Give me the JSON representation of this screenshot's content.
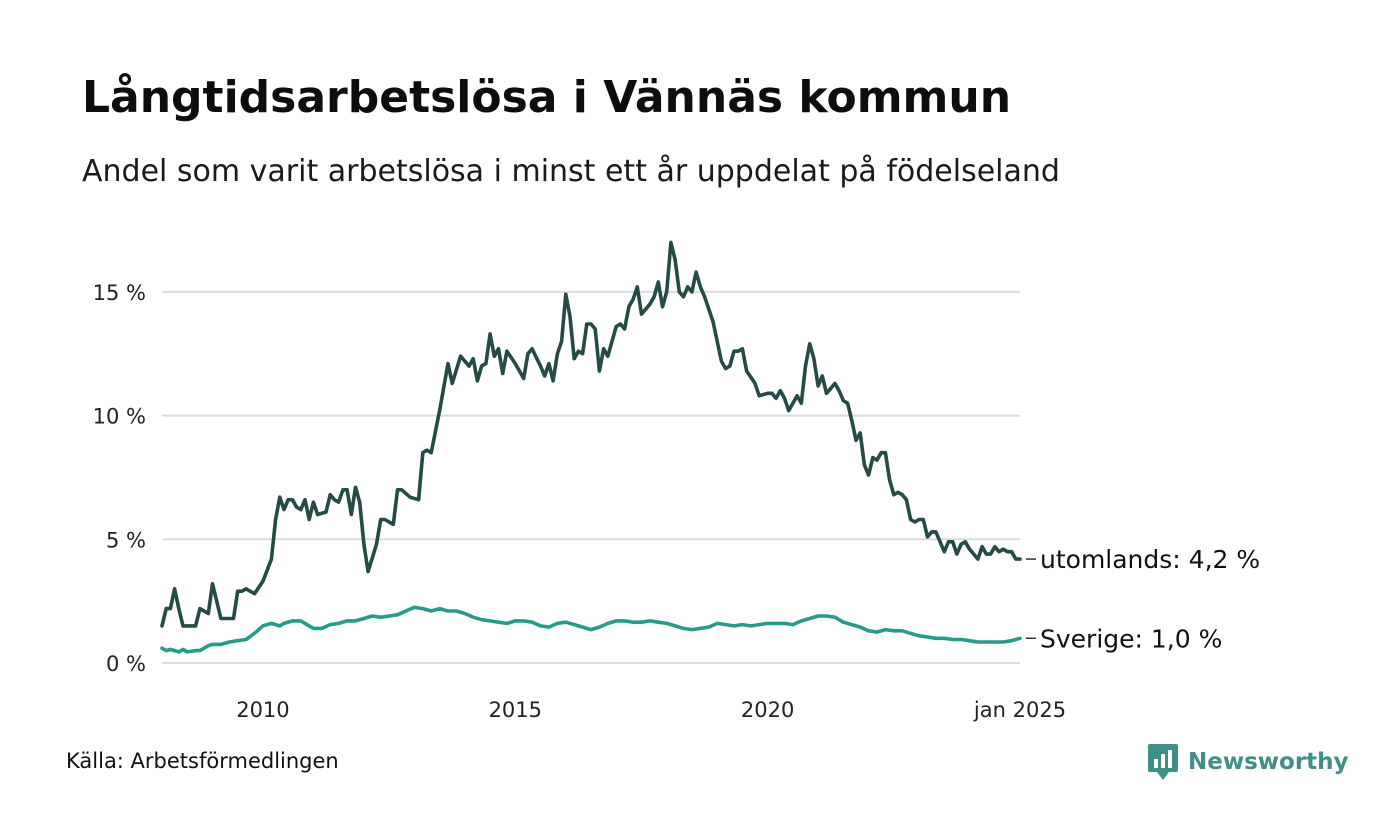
{
  "header": {
    "title": "Långtidsarbetslösa i Vännäs kommun",
    "subtitle": "Andel som varit arbetslösa i minst ett år uppdelat på födelseland"
  },
  "footer": {
    "source": "Källa: Arbetsförmedlingen",
    "brand": "Newsworthy"
  },
  "colors": {
    "utomlands": "#244b45",
    "sverige": "#2a9a88",
    "grid": "#dcdcdc",
    "brand": "#3f8f87"
  },
  "chart_data": {
    "type": "line",
    "title": "Långtidsarbetslösa i Vännäs kommun",
    "subtitle": "Andel som varit arbetslösa i minst ett år uppdelat på födelseland",
    "xlabel": "",
    "ylabel": "",
    "ylim": [
      0,
      17.5
    ],
    "xlim": [
      "2008-01",
      "2025-01"
    ],
    "grid": true,
    "y_ticks": [
      {
        "value": 0,
        "label": "0 %"
      },
      {
        "value": 5,
        "label": "5 %"
      },
      {
        "value": 10,
        "label": "10 %"
      },
      {
        "value": 15,
        "label": "15 %"
      }
    ],
    "x_ticks": [
      {
        "value": "2010-01",
        "label": "2010"
      },
      {
        "value": "2015-01",
        "label": "2015"
      },
      {
        "value": "2020-01",
        "label": "2020"
      },
      {
        "value": "2025-01",
        "label": "jan 2025"
      }
    ],
    "series": [
      {
        "key": "utomlands",
        "end_label": "utomlands: 4,2 %",
        "points": [
          [
            "2008-01",
            1.5
          ],
          [
            "2008-02",
            2.2
          ],
          [
            "2008-03",
            2.2
          ],
          [
            "2008-04",
            3.0
          ],
          [
            "2008-05",
            2.2
          ],
          [
            "2008-06",
            1.5
          ],
          [
            "2008-09",
            1.5
          ],
          [
            "2008-10",
            2.2
          ],
          [
            "2008-12",
            2.0
          ],
          [
            "2009-01",
            3.2
          ],
          [
            "2009-03",
            1.8
          ],
          [
            "2009-06",
            1.8
          ],
          [
            "2009-07",
            2.9
          ],
          [
            "2009-08",
            2.9
          ],
          [
            "2009-09",
            3.0
          ],
          [
            "2009-11",
            2.8
          ],
          [
            "2010-01",
            3.3
          ],
          [
            "2010-03",
            4.2
          ],
          [
            "2010-04",
            5.8
          ],
          [
            "2010-05",
            6.7
          ],
          [
            "2010-06",
            6.2
          ],
          [
            "2010-07",
            6.6
          ],
          [
            "2010-08",
            6.6
          ],
          [
            "2010-09",
            6.3
          ],
          [
            "2010-10",
            6.2
          ],
          [
            "2010-11",
            6.6
          ],
          [
            "2010-12",
            5.8
          ],
          [
            "2011-01",
            6.5
          ],
          [
            "2011-02",
            6.0
          ],
          [
            "2011-04",
            6.1
          ],
          [
            "2011-05",
            6.8
          ],
          [
            "2011-06",
            6.6
          ],
          [
            "2011-07",
            6.5
          ],
          [
            "2011-08",
            7.0
          ],
          [
            "2011-09",
            7.0
          ],
          [
            "2011-10",
            6.0
          ],
          [
            "2011-11",
            7.1
          ],
          [
            "2011-12",
            6.5
          ],
          [
            "2012-01",
            4.8
          ],
          [
            "2012-02",
            3.7
          ],
          [
            "2012-04",
            4.8
          ],
          [
            "2012-05",
            5.8
          ],
          [
            "2012-06",
            5.8
          ],
          [
            "2012-08",
            5.6
          ],
          [
            "2012-09",
            7.0
          ],
          [
            "2012-10",
            7.0
          ],
          [
            "2012-12",
            6.7
          ],
          [
            "2013-02",
            6.6
          ],
          [
            "2013-03",
            8.5
          ],
          [
            "2013-04",
            8.6
          ],
          [
            "2013-05",
            8.5
          ],
          [
            "2013-07",
            10.2
          ],
          [
            "2013-09",
            12.1
          ],
          [
            "2013-10",
            11.3
          ],
          [
            "2013-12",
            12.4
          ],
          [
            "2014-02",
            12.0
          ],
          [
            "2014-03",
            12.3
          ],
          [
            "2014-04",
            11.4
          ],
          [
            "2014-05",
            12.0
          ],
          [
            "2014-06",
            12.1
          ],
          [
            "2014-07",
            13.3
          ],
          [
            "2014-08",
            12.4
          ],
          [
            "2014-09",
            12.7
          ],
          [
            "2014-10",
            11.7
          ],
          [
            "2014-11",
            12.6
          ],
          [
            "2015-01",
            12.1
          ],
          [
            "2015-03",
            11.5
          ],
          [
            "2015-04",
            12.5
          ],
          [
            "2015-05",
            12.7
          ],
          [
            "2015-07",
            12.0
          ],
          [
            "2015-08",
            11.6
          ],
          [
            "2015-09",
            12.1
          ],
          [
            "2015-10",
            11.4
          ],
          [
            "2015-11",
            12.5
          ],
          [
            "2015-12",
            13.0
          ],
          [
            "2016-01",
            14.9
          ],
          [
            "2016-02",
            14.0
          ],
          [
            "2016-03",
            12.3
          ],
          [
            "2016-04",
            12.6
          ],
          [
            "2016-05",
            12.5
          ],
          [
            "2016-06",
            13.7
          ],
          [
            "2016-07",
            13.7
          ],
          [
            "2016-08",
            13.5
          ],
          [
            "2016-09",
            11.8
          ],
          [
            "2016-10",
            12.7
          ],
          [
            "2016-11",
            12.4
          ],
          [
            "2017-01",
            13.6
          ],
          [
            "2017-02",
            13.7
          ],
          [
            "2017-03",
            13.5
          ],
          [
            "2017-04",
            14.4
          ],
          [
            "2017-05",
            14.7
          ],
          [
            "2017-06",
            15.2
          ],
          [
            "2017-07",
            14.1
          ],
          [
            "2017-08",
            14.3
          ],
          [
            "2017-09",
            14.5
          ],
          [
            "2017-10",
            14.8
          ],
          [
            "2017-11",
            15.4
          ],
          [
            "2017-12",
            14.4
          ],
          [
            "2018-01",
            15.0
          ],
          [
            "2018-02",
            17.0
          ],
          [
            "2018-03",
            16.3
          ],
          [
            "2018-04",
            15.0
          ],
          [
            "2018-05",
            14.8
          ],
          [
            "2018-06",
            15.2
          ],
          [
            "2018-07",
            15.0
          ],
          [
            "2018-08",
            15.8
          ],
          [
            "2018-09",
            15.2
          ],
          [
            "2018-10",
            14.8
          ],
          [
            "2018-12",
            13.8
          ],
          [
            "2019-02",
            12.2
          ],
          [
            "2019-03",
            11.9
          ],
          [
            "2019-04",
            12.0
          ],
          [
            "2019-05",
            12.6
          ],
          [
            "2019-06",
            12.6
          ],
          [
            "2019-07",
            12.7
          ],
          [
            "2019-08",
            11.8
          ],
          [
            "2019-10",
            11.3
          ],
          [
            "2019-11",
            10.8
          ],
          [
            "2020-01",
            10.9
          ],
          [
            "2020-02",
            10.9
          ],
          [
            "2020-03",
            10.7
          ],
          [
            "2020-04",
            11.0
          ],
          [
            "2020-05",
            10.7
          ],
          [
            "2020-06",
            10.2
          ],
          [
            "2020-08",
            10.8
          ],
          [
            "2020-09",
            10.5
          ],
          [
            "2020-10",
            12.0
          ],
          [
            "2020-11",
            12.9
          ],
          [
            "2020-12",
            12.3
          ],
          [
            "2021-01",
            11.2
          ],
          [
            "2021-02",
            11.6
          ],
          [
            "2021-03",
            10.9
          ],
          [
            "2021-04",
            11.1
          ],
          [
            "2021-05",
            11.3
          ],
          [
            "2021-06",
            11.0
          ],
          [
            "2021-07",
            10.6
          ],
          [
            "2021-08",
            10.5
          ],
          [
            "2021-09",
            9.8
          ],
          [
            "2021-10",
            9.0
          ],
          [
            "2021-11",
            9.3
          ],
          [
            "2021-12",
            8.0
          ],
          [
            "2022-01",
            7.6
          ],
          [
            "2022-02",
            8.3
          ],
          [
            "2022-03",
            8.2
          ],
          [
            "2022-04",
            8.5
          ],
          [
            "2022-05",
            8.5
          ],
          [
            "2022-06",
            7.4
          ],
          [
            "2022-07",
            6.8
          ],
          [
            "2022-08",
            6.9
          ],
          [
            "2022-09",
            6.8
          ],
          [
            "2022-10",
            6.6
          ],
          [
            "2022-11",
            5.8
          ],
          [
            "2022-12",
            5.7
          ],
          [
            "2023-01",
            5.8
          ],
          [
            "2023-02",
            5.8
          ],
          [
            "2023-03",
            5.1
          ],
          [
            "2023-04",
            5.3
          ],
          [
            "2023-05",
            5.3
          ],
          [
            "2023-06",
            4.9
          ],
          [
            "2023-07",
            4.5
          ],
          [
            "2023-08",
            4.9
          ],
          [
            "2023-09",
            4.9
          ],
          [
            "2023-10",
            4.4
          ],
          [
            "2023-11",
            4.8
          ],
          [
            "2023-12",
            4.9
          ],
          [
            "2024-01",
            4.6
          ],
          [
            "2024-02",
            4.4
          ],
          [
            "2024-03",
            4.2
          ],
          [
            "2024-04",
            4.7
          ],
          [
            "2024-05",
            4.4
          ],
          [
            "2024-06",
            4.4
          ],
          [
            "2024-07",
            4.7
          ],
          [
            "2024-08",
            4.5
          ],
          [
            "2024-09",
            4.6
          ],
          [
            "2024-10",
            4.5
          ],
          [
            "2024-11",
            4.5
          ],
          [
            "2024-12",
            4.2
          ],
          [
            "2025-01",
            4.2
          ]
        ]
      },
      {
        "key": "sverige",
        "end_label": "Sverige: 1,0 %",
        "points": [
          [
            "2008-01",
            0.6
          ],
          [
            "2008-02",
            0.5
          ],
          [
            "2008-03",
            0.55
          ],
          [
            "2008-04",
            0.5
          ],
          [
            "2008-05",
            0.45
          ],
          [
            "2008-06",
            0.55
          ],
          [
            "2008-07",
            0.45
          ],
          [
            "2008-09",
            0.5
          ],
          [
            "2008-10",
            0.5
          ],
          [
            "2008-12",
            0.7
          ],
          [
            "2009-01",
            0.75
          ],
          [
            "2009-03",
            0.75
          ],
          [
            "2009-05",
            0.85
          ],
          [
            "2009-07",
            0.9
          ],
          [
            "2009-09",
            0.95
          ],
          [
            "2009-11",
            1.2
          ],
          [
            "2010-01",
            1.5
          ],
          [
            "2010-03",
            1.6
          ],
          [
            "2010-05",
            1.5
          ],
          [
            "2010-06",
            1.6
          ],
          [
            "2010-08",
            1.7
          ],
          [
            "2010-10",
            1.7
          ],
          [
            "2011-01",
            1.4
          ],
          [
            "2011-03",
            1.4
          ],
          [
            "2011-05",
            1.55
          ],
          [
            "2011-07",
            1.6
          ],
          [
            "2011-09",
            1.7
          ],
          [
            "2011-11",
            1.7
          ],
          [
            "2012-01",
            1.8
          ],
          [
            "2012-03",
            1.9
          ],
          [
            "2012-05",
            1.85
          ],
          [
            "2012-07",
            1.9
          ],
          [
            "2012-09",
            1.95
          ],
          [
            "2012-11",
            2.1
          ],
          [
            "2013-01",
            2.25
          ],
          [
            "2013-03",
            2.2
          ],
          [
            "2013-05",
            2.1
          ],
          [
            "2013-07",
            2.2
          ],
          [
            "2013-09",
            2.1
          ],
          [
            "2013-11",
            2.1
          ],
          [
            "2014-01",
            2.0
          ],
          [
            "2014-03",
            1.85
          ],
          [
            "2014-05",
            1.75
          ],
          [
            "2014-07",
            1.7
          ],
          [
            "2014-09",
            1.65
          ],
          [
            "2014-11",
            1.6
          ],
          [
            "2015-01",
            1.7
          ],
          [
            "2015-03",
            1.7
          ],
          [
            "2015-05",
            1.65
          ],
          [
            "2015-07",
            1.5
          ],
          [
            "2015-09",
            1.45
          ],
          [
            "2015-11",
            1.6
          ],
          [
            "2016-01",
            1.65
          ],
          [
            "2016-03",
            1.55
          ],
          [
            "2016-05",
            1.45
          ],
          [
            "2016-07",
            1.35
          ],
          [
            "2016-09",
            1.45
          ],
          [
            "2016-11",
            1.6
          ],
          [
            "2017-01",
            1.7
          ],
          [
            "2017-03",
            1.7
          ],
          [
            "2017-05",
            1.65
          ],
          [
            "2017-07",
            1.65
          ],
          [
            "2017-09",
            1.7
          ],
          [
            "2017-11",
            1.65
          ],
          [
            "2018-01",
            1.6
          ],
          [
            "2018-03",
            1.5
          ],
          [
            "2018-05",
            1.4
          ],
          [
            "2018-07",
            1.35
          ],
          [
            "2018-09",
            1.4
          ],
          [
            "2018-11",
            1.45
          ],
          [
            "2019-01",
            1.6
          ],
          [
            "2019-03",
            1.55
          ],
          [
            "2019-05",
            1.5
          ],
          [
            "2019-07",
            1.55
          ],
          [
            "2019-09",
            1.5
          ],
          [
            "2019-11",
            1.55
          ],
          [
            "2020-01",
            1.6
          ],
          [
            "2020-03",
            1.6
          ],
          [
            "2020-05",
            1.6
          ],
          [
            "2020-07",
            1.55
          ],
          [
            "2020-09",
            1.7
          ],
          [
            "2020-11",
            1.8
          ],
          [
            "2021-01",
            1.9
          ],
          [
            "2021-03",
            1.9
          ],
          [
            "2021-05",
            1.85
          ],
          [
            "2021-07",
            1.65
          ],
          [
            "2021-09",
            1.55
          ],
          [
            "2021-11",
            1.45
          ],
          [
            "2022-01",
            1.3
          ],
          [
            "2022-03",
            1.25
          ],
          [
            "2022-05",
            1.35
          ],
          [
            "2022-07",
            1.3
          ],
          [
            "2022-09",
            1.3
          ],
          [
            "2022-11",
            1.2
          ],
          [
            "2023-01",
            1.1
          ],
          [
            "2023-03",
            1.05
          ],
          [
            "2023-05",
            1.0
          ],
          [
            "2023-07",
            1.0
          ],
          [
            "2023-09",
            0.95
          ],
          [
            "2023-11",
            0.95
          ],
          [
            "2024-01",
            0.9
          ],
          [
            "2024-03",
            0.85
          ],
          [
            "2024-05",
            0.85
          ],
          [
            "2024-07",
            0.85
          ],
          [
            "2024-09",
            0.85
          ],
          [
            "2024-11",
            0.9
          ],
          [
            "2025-01",
            1.0
          ]
        ]
      }
    ]
  }
}
